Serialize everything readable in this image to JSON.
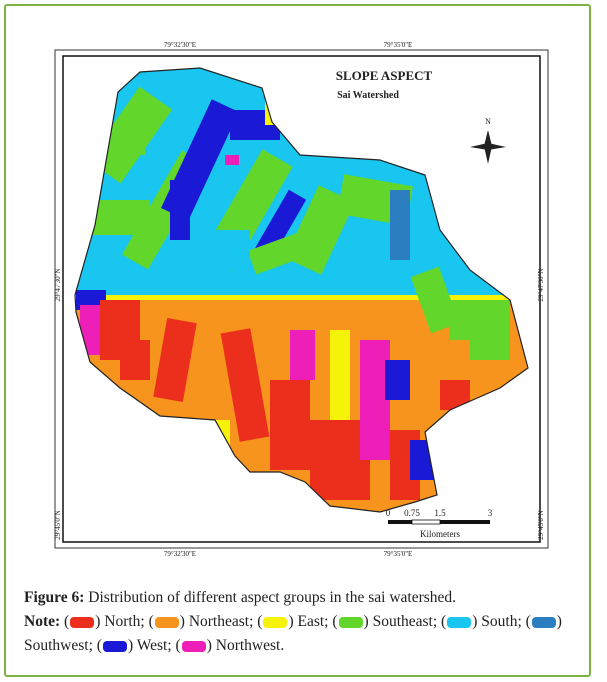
{
  "figure": {
    "map": {
      "title": "SLOPE ASPECT",
      "subtitle": "Sai Watershed",
      "north": "N",
      "top_ticks": [
        "79°32'30\"E",
        "79°35'0\"E"
      ],
      "bottom_ticks": [
        "79°32'30\"E",
        "79°35'0\"E"
      ],
      "left_ticks": [
        "29°47'30\"N",
        "29°45'0\"N"
      ],
      "right_ticks": [
        "29°47'30\"N",
        "29°45'0\"N"
      ],
      "scale": {
        "labels": [
          "0",
          "0.75",
          "1.5",
          "3"
        ],
        "unit": "Kilometers"
      }
    },
    "caption": {
      "label": "Figure 6:",
      "text": "Distribution of different aspect groups in the sai watershed."
    },
    "note": {
      "label": "Note:",
      "brackets": [
        "(",
        ")"
      ],
      "items": [
        {
          "text": "North;",
          "color": "#ec2f1c"
        },
        {
          "text": "Northeast;",
          "color": "#f7941d"
        },
        {
          "text": "East;",
          "color": "#f7f20a"
        },
        {
          "text": "Southeast;",
          "color": "#62d62a"
        },
        {
          "text": "South;",
          "color": "#18c6f0"
        },
        {
          "text": "Southwest;",
          "color": "#2b7fc1"
        },
        {
          "text": "West;",
          "color": "#1a1ad6"
        },
        {
          "text": "Northwest.",
          "color": "#ee1fb8"
        }
      ]
    }
  }
}
